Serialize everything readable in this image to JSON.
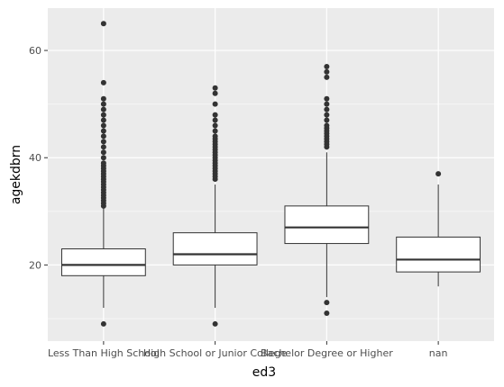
{
  "chart_data": {
    "type": "boxplot",
    "title": "",
    "xlabel": "ed3",
    "ylabel": "agekdbrn",
    "ylim": [
      5.8,
      67.9
    ],
    "yticks": [
      20,
      40,
      60
    ],
    "grid": true,
    "legend": "none",
    "colors": {
      "panel": "#ebebeb",
      "grid_major": "#ffffff",
      "grid_minor": "#f5f5f5",
      "box_fill": "#ffffff",
      "line": "#333333",
      "point": "#333333",
      "tick_text": "#4d4d4d"
    },
    "categories": [
      "Less Than High School",
      "High School or Junior College",
      "Bachelor Degree or Higher",
      "nan"
    ],
    "boxes": [
      {
        "category": "Less Than High School",
        "whisker_low": 12,
        "q1": 18,
        "median": 20,
        "q3": 23,
        "whisker_high": 31,
        "outliers": [
          9,
          31,
          31.5,
          32,
          32.5,
          33,
          33.5,
          34,
          34.5,
          35,
          35.5,
          36,
          36.5,
          37,
          37.5,
          38,
          38.5,
          39,
          40,
          41,
          42,
          43,
          44,
          45,
          46,
          47,
          48,
          49,
          50,
          51,
          54,
          65
        ]
      },
      {
        "category": "High School or Junior College",
        "whisker_low": 12,
        "q1": 20,
        "median": 22,
        "q3": 26,
        "whisker_high": 35,
        "outliers": [
          9,
          36,
          36.5,
          37,
          37.5,
          38,
          38.5,
          39,
          39.5,
          40,
          40.5,
          41,
          41.5,
          42,
          42.5,
          43,
          43.5,
          44,
          45,
          46,
          47,
          48,
          50,
          52,
          53
        ]
      },
      {
        "category": "Bachelor Degree or Higher",
        "whisker_low": 14,
        "q1": 24,
        "median": 27,
        "q3": 31,
        "whisker_high": 41,
        "outliers": [
          11,
          13,
          42,
          42.5,
          43,
          43.5,
          44,
          44.5,
          45,
          45.5,
          46,
          47,
          48,
          49,
          50,
          51,
          55,
          56,
          57
        ]
      },
      {
        "category": "nan",
        "whisker_low": 16,
        "q1": 18.7,
        "median": 21,
        "q3": 25.2,
        "whisker_high": 35,
        "outliers": [
          37
        ]
      }
    ]
  }
}
